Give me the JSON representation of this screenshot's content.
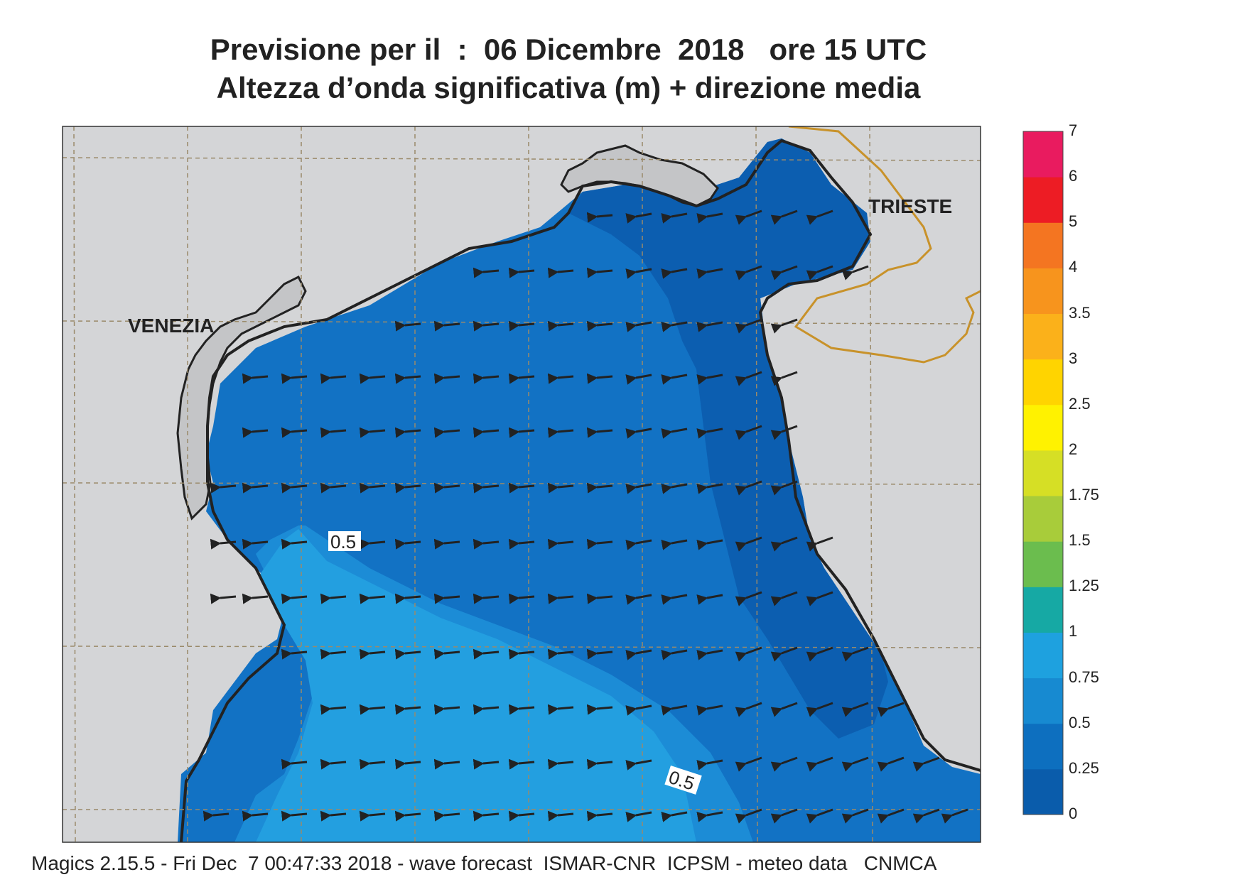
{
  "title": {
    "line1": "Previsione per il  :  06 Dicembre  2018   ore 15 UTC",
    "line2": "Altezza d’onda significativa (m) + direzione media"
  },
  "map": {
    "places": [
      {
        "label": "VENEZIA"
      },
      {
        "label": "TRIESTE"
      }
    ],
    "contour_labels": [
      "0.5",
      "0.5"
    ],
    "wave_direction": "west",
    "colors": {
      "land": "#d4d5d7",
      "border": "#c8922a",
      "sea_0_025": "#0c5eb0",
      "sea_025_05": "#1272c4",
      "sea_05_075": "#1c8cd6",
      "sea_075_1": "#239fe0"
    }
  },
  "legend": {
    "labels": [
      "7",
      "6",
      "5",
      "4",
      "3.5",
      "3",
      "2.5",
      "2",
      "1.75",
      "1.5",
      "1.25",
      "1",
      "0.75",
      "0.5",
      "0.25",
      "0"
    ],
    "colors": [
      "#0a5cab",
      "#0d6fbf",
      "#178ad1",
      "#1ea1df",
      "#16a9a4",
      "#6bbd4e",
      "#a8cc3a",
      "#d6df25",
      "#fff200",
      "#ffd400",
      "#fbb11a",
      "#f7941d",
      "#f47521",
      "#ed1c24",
      "#e91b5f"
    ]
  },
  "footer": "Magics 2.15.5 - Fri Dec  7 00:47:33 2018 - wave forecast  ISMAR-CNR  ICPSM - meteo data   CNMCA"
}
